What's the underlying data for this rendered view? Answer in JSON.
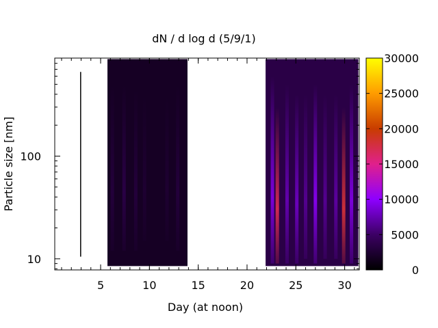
{
  "chart_data": {
    "type": "heatmap",
    "title": "dN / d log d (5/9/1)",
    "xlabel": "Day (at noon)",
    "ylabel": "Particle size [nm]",
    "xlim": [
      0.3,
      31.5
    ],
    "ylim": [
      7.8,
      900
    ],
    "yscale": "log",
    "x_ticks": [
      {
        "value": 5,
        "label": "5"
      },
      {
        "value": 10,
        "label": "10"
      },
      {
        "value": 15,
        "label": "15"
      },
      {
        "value": 20,
        "label": "20"
      },
      {
        "value": 25,
        "label": "25"
      },
      {
        "value": 30,
        "label": "30"
      }
    ],
    "x_minor_step": 1,
    "y_ticks": [
      {
        "value": 10,
        "label": "10"
      },
      {
        "value": 100,
        "label": "100"
      }
    ],
    "colorbar": {
      "min": 0,
      "max": 30000,
      "palette": [
        "#000000",
        "#3c0064",
        "#8e00ff",
        "#e0208c",
        "#c83c00",
        "#ff9c00",
        "#ffff00"
      ],
      "ticks": [
        {
          "value": 0,
          "label": "0"
        },
        {
          "value": 5000,
          "label": "5000"
        },
        {
          "value": 10000,
          "label": "10000"
        },
        {
          "value": 15000,
          "label": "15000"
        },
        {
          "value": 20000,
          "label": "20000"
        },
        {
          "value": 25000,
          "label": "25000"
        },
        {
          "value": 30000,
          "label": "30000"
        }
      ]
    },
    "data_blocks": [
      {
        "x_start": 2.9,
        "x_end": 3.0,
        "size_min": 10.5,
        "size_max": 660,
        "level": 0
      },
      {
        "x_start": 5.7,
        "x_end": 13.9,
        "size_min": 8.5,
        "size_max": 880,
        "level": 1800
      },
      {
        "x_start": 21.9,
        "x_end": 31.4,
        "size_min": 8.5,
        "size_max": 880,
        "level": 3500
      }
    ],
    "streaks": [
      {
        "day": 6.2,
        "size_min": 12,
        "size_max": 500,
        "value": 3000
      },
      {
        "day": 7.4,
        "size_min": 12,
        "size_max": 500,
        "value": 3500
      },
      {
        "day": 8.6,
        "size_min": 12,
        "size_max": 450,
        "value": 3000
      },
      {
        "day": 9.5,
        "size_min": 15,
        "size_max": 400,
        "value": 2500
      },
      {
        "day": 11.8,
        "size_min": 15,
        "size_max": 400,
        "value": 2500
      },
      {
        "day": 12.9,
        "size_min": 12,
        "size_max": 500,
        "value": 3000
      },
      {
        "day": 22.6,
        "size_min": 9,
        "size_max": 600,
        "value": 9000
      },
      {
        "day": 23.1,
        "size_min": 9,
        "size_max": 300,
        "value": 17000
      },
      {
        "day": 24.1,
        "size_min": 9,
        "size_max": 500,
        "value": 7500
      },
      {
        "day": 25.1,
        "size_min": 9,
        "size_max": 400,
        "value": 8000
      },
      {
        "day": 26.0,
        "size_min": 10,
        "size_max": 400,
        "value": 6500
      },
      {
        "day": 27.0,
        "size_min": 9,
        "size_max": 500,
        "value": 9500
      },
      {
        "day": 28.0,
        "size_min": 10,
        "size_max": 400,
        "value": 6500
      },
      {
        "day": 29.1,
        "size_min": 10,
        "size_max": 400,
        "value": 7000
      },
      {
        "day": 29.9,
        "size_min": 9,
        "size_max": 300,
        "value": 18000
      },
      {
        "day": 30.7,
        "size_min": 9,
        "size_max": 500,
        "value": 9000
      }
    ]
  }
}
